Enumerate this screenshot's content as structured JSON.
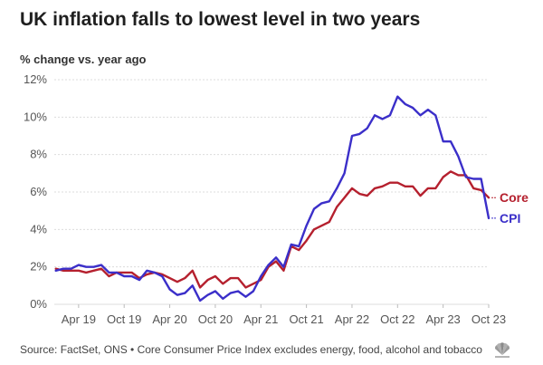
{
  "header": {
    "title": "UK inflation falls to lowest level in two years",
    "subtitle": "% change vs. year ago"
  },
  "footer": {
    "source": "Source: FactSet, ONS • Core Consumer Price Index excludes energy, food, alcohol and tobacco",
    "logo_icon": "cnbc-peacock-icon"
  },
  "chart_data": {
    "type": "line",
    "x_ticks": [
      "Apr 19",
      "Oct 19",
      "Apr 20",
      "Oct 20",
      "Apr 21",
      "Oct 21",
      "Apr 22",
      "Oct 22",
      "Apr 23",
      "Oct 23"
    ],
    "xlim": [
      "2019-01",
      "2023-10"
    ],
    "ylim": [
      0,
      12
    ],
    "y_ticks": [
      "0%",
      "2%",
      "4%",
      "6%",
      "8%",
      "10%",
      "12%"
    ],
    "y_tick_values": [
      0,
      2,
      4,
      6,
      8,
      10,
      12
    ],
    "grid": true,
    "series": [
      {
        "name": "Core",
        "color": "#b5202e",
        "x": [
          "2019-01",
          "2019-02",
          "2019-03",
          "2019-04",
          "2019-05",
          "2019-06",
          "2019-07",
          "2019-08",
          "2019-09",
          "2019-10",
          "2019-11",
          "2019-12",
          "2020-01",
          "2020-02",
          "2020-03",
          "2020-04",
          "2020-05",
          "2020-06",
          "2020-07",
          "2020-08",
          "2020-09",
          "2020-10",
          "2020-11",
          "2020-12",
          "2021-01",
          "2021-02",
          "2021-03",
          "2021-04",
          "2021-05",
          "2021-06",
          "2021-07",
          "2021-08",
          "2021-09",
          "2021-10",
          "2021-11",
          "2021-12",
          "2022-01",
          "2022-02",
          "2022-03",
          "2022-04",
          "2022-05",
          "2022-06",
          "2022-07",
          "2022-08",
          "2022-09",
          "2022-10",
          "2022-11",
          "2022-12",
          "2023-01",
          "2023-02",
          "2023-03",
          "2023-04",
          "2023-05",
          "2023-06",
          "2023-07",
          "2023-08",
          "2023-09",
          "2023-10"
        ],
        "values": [
          1.9,
          1.8,
          1.8,
          1.8,
          1.7,
          1.8,
          1.9,
          1.5,
          1.7,
          1.7,
          1.7,
          1.4,
          1.6,
          1.7,
          1.6,
          1.4,
          1.2,
          1.4,
          1.8,
          0.9,
          1.3,
          1.5,
          1.1,
          1.4,
          1.4,
          0.9,
          1.1,
          1.3,
          2.0,
          2.3,
          1.8,
          3.1,
          2.9,
          3.4,
          4.0,
          4.2,
          4.4,
          5.2,
          5.7,
          6.2,
          5.9,
          5.8,
          6.2,
          6.3,
          6.5,
          6.5,
          6.3,
          6.3,
          5.8,
          6.2,
          6.2,
          6.8,
          7.1,
          6.9,
          6.9,
          6.2,
          6.1,
          5.7
        ]
      },
      {
        "name": "CPI",
        "color": "#3b2fc9",
        "x": [
          "2019-01",
          "2019-02",
          "2019-03",
          "2019-04",
          "2019-05",
          "2019-06",
          "2019-07",
          "2019-08",
          "2019-09",
          "2019-10",
          "2019-11",
          "2019-12",
          "2020-01",
          "2020-02",
          "2020-03",
          "2020-04",
          "2020-05",
          "2020-06",
          "2020-07",
          "2020-08",
          "2020-09",
          "2020-10",
          "2020-11",
          "2020-12",
          "2021-01",
          "2021-02",
          "2021-03",
          "2021-04",
          "2021-05",
          "2021-06",
          "2021-07",
          "2021-08",
          "2021-09",
          "2021-10",
          "2021-11",
          "2021-12",
          "2022-01",
          "2022-02",
          "2022-03",
          "2022-04",
          "2022-05",
          "2022-06",
          "2022-07",
          "2022-08",
          "2022-09",
          "2022-10",
          "2022-11",
          "2022-12",
          "2023-01",
          "2023-02",
          "2023-03",
          "2023-04",
          "2023-05",
          "2023-06",
          "2023-07",
          "2023-08",
          "2023-09",
          "2023-10"
        ],
        "values": [
          1.8,
          1.9,
          1.9,
          2.1,
          2.0,
          2.0,
          2.1,
          1.7,
          1.7,
          1.5,
          1.5,
          1.3,
          1.8,
          1.7,
          1.5,
          0.8,
          0.5,
          0.6,
          1.0,
          0.2,
          0.5,
          0.7,
          0.3,
          0.6,
          0.7,
          0.4,
          0.7,
          1.5,
          2.1,
          2.5,
          2.0,
          3.2,
          3.1,
          4.2,
          5.1,
          5.4,
          5.5,
          6.2,
          7.0,
          9.0,
          9.1,
          9.4,
          10.1,
          9.9,
          10.1,
          11.1,
          10.7,
          10.5,
          10.1,
          10.4,
          10.1,
          8.7,
          8.7,
          7.9,
          6.8,
          6.7,
          6.7,
          4.6
        ]
      }
    ]
  }
}
